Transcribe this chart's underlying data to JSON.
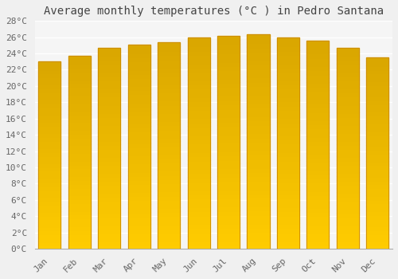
{
  "title": "Average monthly temperatures (°C ) in Pedro Santana",
  "months": [
    "Jan",
    "Feb",
    "Mar",
    "Apr",
    "May",
    "Jun",
    "Jul",
    "Aug",
    "Sep",
    "Oct",
    "Nov",
    "Dec"
  ],
  "values": [
    23.0,
    23.7,
    24.7,
    25.1,
    25.4,
    26.0,
    26.2,
    26.4,
    26.0,
    25.6,
    24.7,
    23.5
  ],
  "bar_color_top": "#FFAA00",
  "bar_color_bottom": "#FFD060",
  "bar_edge_color": "#CC8800",
  "ylim": [
    0,
    28
  ],
  "ytick_step": 2,
  "background_color": "#f0f0f0",
  "plot_bg_color": "#f5f5f5",
  "grid_color": "#ffffff",
  "title_fontsize": 10,
  "tick_fontsize": 8
}
